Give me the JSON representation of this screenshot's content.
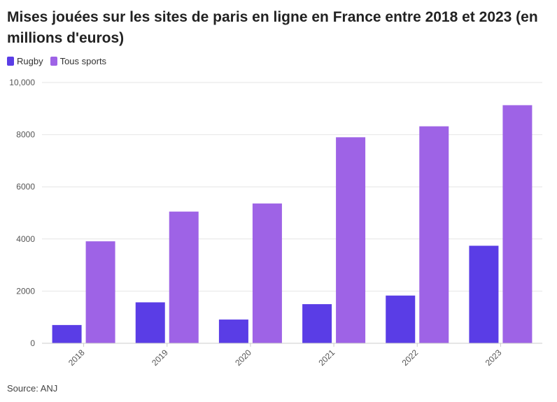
{
  "chart_data": {
    "type": "bar",
    "title": "Mises jouées sur les sites de paris en ligne en France entre 2018 et 2023 (en millions d'euros)",
    "categories": [
      "2018",
      "2019",
      "2020",
      "2021",
      "2022",
      "2023"
    ],
    "series": [
      {
        "name": "Rugby",
        "color": "#5a3de6",
        "values": [
          700,
          1570,
          910,
          1500,
          1830,
          3740
        ]
      },
      {
        "name": "Tous sports",
        "color": "#9e63e6",
        "values": [
          3910,
          5050,
          5360,
          7900,
          8320,
          9130
        ]
      }
    ],
    "ylim": [
      0,
      10000
    ],
    "yticks": [
      0,
      2000,
      4000,
      6000,
      8000,
      10000
    ],
    "ytick_labels": [
      "0",
      "2000",
      "4000",
      "6000",
      "8000",
      "10,000"
    ],
    "legend": "top-left",
    "grid": true
  },
  "source": "Source: ANJ"
}
